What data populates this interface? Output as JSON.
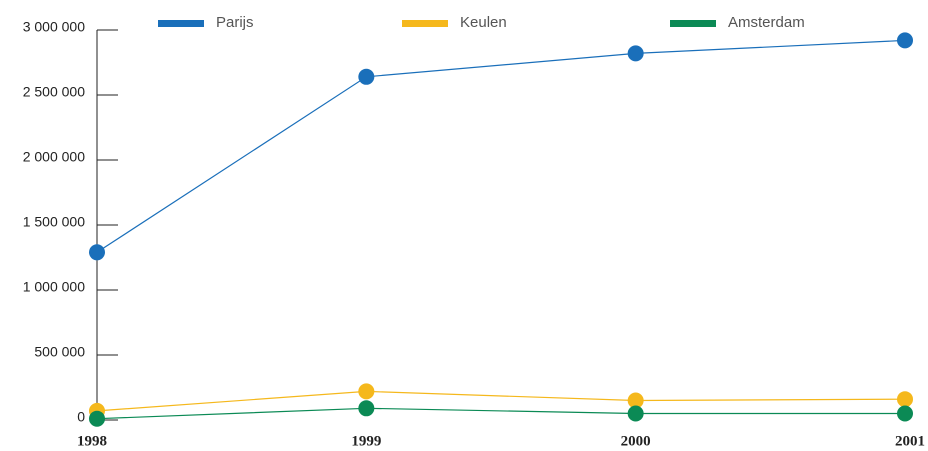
{
  "chart_data": {
    "type": "line",
    "categories": [
      "1998",
      "1999",
      "2000",
      "2001"
    ],
    "series": [
      {
        "name": "Parijs",
        "color": "#1a6fba",
        "values": [
          1290000,
          2640000,
          2820000,
          2920000
        ]
      },
      {
        "name": "Keulen",
        "color": "#f5b81c",
        "values": [
          70000,
          220000,
          150000,
          160000
        ]
      },
      {
        "name": "Amsterdam",
        "color": "#0b8a55",
        "values": [
          10000,
          90000,
          50000,
          50000
        ]
      }
    ],
    "ylim": [
      0,
      3000000
    ],
    "yticks": [
      0,
      {
        "value": 500000,
        "label": "500 000"
      },
      {
        "value": 1000000,
        "label": "1 000 000"
      },
      {
        "value": 1500000,
        "label": "1 500 000"
      },
      {
        "value": 2000000,
        "label": "2 000 000"
      },
      {
        "value": 2500000,
        "label": "2 500 000"
      },
      {
        "value": 3000000,
        "label": "3 000 000"
      }
    ],
    "legend": "top"
  }
}
